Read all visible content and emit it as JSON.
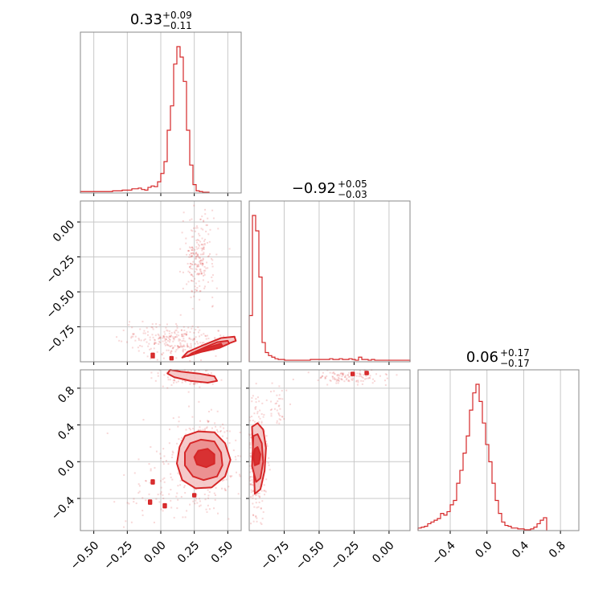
{
  "chart_data": {
    "type": "corner",
    "color": "#d62728",
    "parameters": [
      {
        "title": {
          "value": "0.33",
          "plus": "+0.09",
          "minus": "−0.11"
        },
        "range": [
          -0.6,
          0.6
        ],
        "ticks": [
          -0.5,
          -0.25,
          0.0,
          0.25,
          0.5
        ],
        "tick_labels": [
          "−0.50",
          "−0.25",
          "0.00",
          "0.25",
          "0.50"
        ],
        "histogram": {
          "edges_start": -0.6,
          "bin_width": 0.024,
          "counts": [
            2,
            2,
            2,
            2,
            2,
            2,
            2,
            2,
            2,
            2,
            3,
            3,
            3,
            4,
            4,
            4,
            6,
            6,
            7,
            5,
            4,
            8,
            10,
            9,
            16,
            28,
            45,
            90,
            125,
            185,
            210,
            195,
            160,
            90,
            40,
            12,
            3,
            2,
            1,
            1
          ]
        }
      },
      {
        "title": {
          "value": "−0.92",
          "plus": "+0.05",
          "minus": "−0.03"
        },
        "range": [
          -1.0,
          0.15
        ],
        "ticks": [
          -0.75,
          -0.5,
          -0.25,
          0.0
        ],
        "tick_labels": [
          "−0.75",
          "−0.50",
          "−0.25",
          "0.00"
        ],
        "histogram": {
          "edges_start": -1.0,
          "bin_width": 0.023,
          "counts": [
            60,
            190,
            170,
            110,
            25,
            12,
            8,
            6,
            4,
            3,
            3,
            2,
            2,
            2,
            2,
            2,
            2,
            2,
            2,
            3,
            3,
            3,
            3,
            3,
            3,
            4,
            3,
            3,
            4,
            3,
            3,
            4,
            3,
            2,
            6,
            3,
            3,
            2,
            3,
            2,
            2,
            2,
            2,
            2,
            2,
            2,
            2,
            2,
            2,
            2
          ]
        }
      },
      {
        "title": {
          "value": "0.06",
          "plus": "+0.17",
          "minus": "−0.17"
        },
        "range": [
          -0.75,
          1.0
        ],
        "ticks": [
          -0.4,
          0.0,
          0.4,
          0.8
        ],
        "tick_labels": [
          "−0.4",
          "0.0",
          "0.4",
          "0.8"
        ],
        "histogram": {
          "edges_start": -0.75,
          "bin_width": 0.035,
          "counts": [
            3,
            4,
            5,
            8,
            10,
            12,
            14,
            20,
            18,
            22,
            30,
            35,
            55,
            70,
            90,
            110,
            140,
            160,
            170,
            150,
            125,
            100,
            80,
            55,
            35,
            20,
            10,
            6,
            5,
            3,
            3,
            2,
            2,
            1,
            1,
            2,
            4,
            8,
            12,
            15
          ]
        }
      }
    ],
    "pairs": [
      {
        "row": 1,
        "col": 0,
        "contours": [
          {
            "level": 1,
            "fill": "#f4c4c4",
            "points": [
              [
                0.16,
                -0.97
              ],
              [
                0.28,
                -0.93
              ],
              [
                0.45,
                -0.89
              ],
              [
                0.56,
                -0.85
              ],
              [
                0.55,
                -0.82
              ],
              [
                0.45,
                -0.83
              ],
              [
                0.32,
                -0.88
              ],
              [
                0.2,
                -0.93
              ]
            ]
          },
          {
            "level": 2,
            "fill": "#eb8b8b",
            "points": [
              [
                0.2,
                -0.96
              ],
              [
                0.3,
                -0.93
              ],
              [
                0.44,
                -0.9
              ],
              [
                0.51,
                -0.87
              ],
              [
                0.5,
                -0.85
              ],
              [
                0.42,
                -0.86
              ],
              [
                0.32,
                -0.9
              ],
              [
                0.23,
                -0.94
              ]
            ]
          },
          {
            "level": 3,
            "fill": "#d62728",
            "points": [
              [
                0.26,
                -0.94
              ],
              [
                0.34,
                -0.92
              ],
              [
                0.42,
                -0.9
              ],
              [
                0.46,
                -0.89
              ],
              [
                0.45,
                -0.87
              ],
              [
                0.38,
                -0.89
              ],
              [
                0.3,
                -0.91
              ]
            ]
          },
          {
            "level": 3,
            "fill": "#d62728",
            "points": [
              [
                -0.07,
                -0.97
              ],
              [
                -0.05,
                -0.97
              ],
              [
                -0.05,
                -0.94
              ],
              [
                -0.07,
                -0.94
              ]
            ]
          },
          {
            "level": 3,
            "fill": "#d62728",
            "points": [
              [
                0.07,
                -0.985
              ],
              [
                0.09,
                -0.985
              ],
              [
                0.09,
                -0.965
              ],
              [
                0.07,
                -0.965
              ]
            ]
          }
        ]
      },
      {
        "row": 2,
        "col": 0,
        "contours": [
          {
            "level": 1,
            "fill": "#f4c4c4",
            "points": [
              [
                0.18,
                0.28
              ],
              [
                0.28,
                0.33
              ],
              [
                0.4,
                0.32
              ],
              [
                0.48,
                0.2
              ],
              [
                0.52,
                0.02
              ],
              [
                0.48,
                -0.16
              ],
              [
                0.38,
                -0.28
              ],
              [
                0.26,
                -0.29
              ],
              [
                0.16,
                -0.2
              ],
              [
                0.12,
                -0.02
              ],
              [
                0.14,
                0.16
              ]
            ]
          },
          {
            "level": 2,
            "fill": "#eb8b8b",
            "points": [
              [
                0.22,
                0.2
              ],
              [
                0.3,
                0.24
              ],
              [
                0.4,
                0.22
              ],
              [
                0.45,
                0.1
              ],
              [
                0.46,
                -0.04
              ],
              [
                0.42,
                -0.16
              ],
              [
                0.32,
                -0.2
              ],
              [
                0.24,
                -0.16
              ],
              [
                0.18,
                -0.04
              ],
              [
                0.18,
                0.1
              ]
            ]
          },
          {
            "level": 3,
            "fill": "#d62728",
            "points": [
              [
                0.28,
                0.12
              ],
              [
                0.35,
                0.14
              ],
              [
                0.4,
                0.08
              ],
              [
                0.4,
                -0.02
              ],
              [
                0.34,
                -0.06
              ],
              [
                0.27,
                -0.03
              ],
              [
                0.25,
                0.05
              ]
            ]
          },
          {
            "level": 1,
            "fill": "#f4c4c4",
            "points": [
              [
                0.07,
                1.0
              ],
              [
                0.15,
                0.98
              ],
              [
                0.28,
                0.96
              ],
              [
                0.4,
                0.93
              ],
              [
                0.42,
                0.88
              ],
              [
                0.35,
                0.86
              ],
              [
                0.22,
                0.88
              ],
              [
                0.1,
                0.92
              ],
              [
                0.05,
                0.96
              ]
            ]
          },
          {
            "level": 3,
            "fill": "#d62728",
            "points": [
              [
                -0.07,
                -0.24
              ],
              [
                -0.05,
                -0.24
              ],
              [
                -0.05,
                -0.2
              ],
              [
                -0.07,
                -0.2
              ]
            ]
          },
          {
            "level": 3,
            "fill": "#d62728",
            "points": [
              [
                -0.09,
                -0.46
              ],
              [
                -0.07,
                -0.46
              ],
              [
                -0.07,
                -0.42
              ],
              [
                -0.09,
                -0.42
              ]
            ]
          },
          {
            "level": 3,
            "fill": "#d62728",
            "points": [
              [
                0.02,
                -0.5
              ],
              [
                0.04,
                -0.5
              ],
              [
                0.04,
                -0.46
              ],
              [
                0.02,
                -0.46
              ]
            ]
          },
          {
            "level": 3,
            "fill": "#d62728",
            "points": [
              [
                0.24,
                -0.38
              ],
              [
                0.26,
                -0.38
              ],
              [
                0.26,
                -0.35
              ],
              [
                0.24,
                -0.35
              ]
            ]
          }
        ]
      },
      {
        "row": 2,
        "col": 1,
        "contours": [
          {
            "level": 1,
            "fill": "#f4c4c4",
            "points": [
              [
                -0.98,
                0.38
              ],
              [
                -0.94,
                0.42
              ],
              [
                -0.9,
                0.35
              ],
              [
                -0.88,
                0.15
              ],
              [
                -0.89,
                -0.1
              ],
              [
                -0.92,
                -0.3
              ],
              [
                -0.96,
                -0.35
              ],
              0
            ]
          },
          {
            "level": 2,
            "fill": "#eb8b8b",
            "points": [
              [
                -0.97,
                0.28
              ],
              [
                -0.94,
                0.3
              ],
              [
                -0.91,
                0.2
              ],
              [
                -0.9,
                0.0
              ],
              [
                -0.92,
                -0.18
              ],
              [
                -0.95,
                -0.22
              ],
              [
                -0.98,
                -0.05
              ]
            ]
          },
          {
            "level": 3,
            "fill": "#d62728",
            "points": [
              [
                -0.96,
                0.14
              ],
              [
                -0.94,
                0.16
              ],
              [
                -0.92,
                0.08
              ],
              [
                -0.93,
                -0.02
              ],
              [
                -0.96,
                -0.04
              ],
              [
                -0.97,
                0.05
              ]
            ]
          },
          {
            "level": 3,
            "fill": "#d62728",
            "points": [
              [
                -0.27,
                0.94
              ],
              [
                -0.25,
                0.94
              ],
              [
                -0.25,
                0.97
              ],
              [
                -0.27,
                0.97
              ]
            ]
          },
          {
            "level": 3,
            "fill": "#d62728",
            "points": [
              [
                -0.17,
                0.95
              ],
              [
                -0.15,
                0.95
              ],
              [
                -0.15,
                0.98
              ],
              [
                -0.17,
                0.98
              ]
            ]
          }
        ]
      }
    ]
  }
}
